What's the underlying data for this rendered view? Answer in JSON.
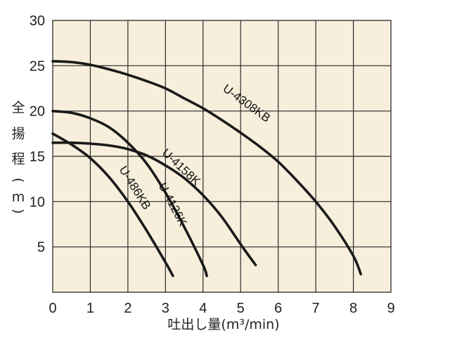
{
  "chart_data": {
    "type": "line",
    "title": "",
    "xlabel": "吐出し量(m³/min)",
    "ylabel_chars": [
      "全",
      "揚",
      "程",
      "(",
      "m",
      ")"
    ],
    "xlim": [
      0,
      9
    ],
    "ylim": [
      0,
      30
    ],
    "x_ticks": [
      "0",
      "1",
      "2",
      "3",
      "4",
      "5",
      "6",
      "7",
      "8",
      "9"
    ],
    "y_ticks": [
      "5",
      "10",
      "15",
      "20",
      "25",
      "30"
    ],
    "grid": true,
    "legend": "inline-labels",
    "colors": {
      "plot_bg": "#f7efdc",
      "grid": "#2a2a2a",
      "curve": "#1a1a1a"
    },
    "series": [
      {
        "name": "U-4308KB",
        "x": [
          0,
          0.5,
          1.0,
          1.5,
          2.0,
          2.5,
          3.0,
          3.5,
          4.0,
          4.5,
          5.0,
          5.5,
          6.0,
          6.5,
          7.0,
          7.5,
          8.0,
          8.2
        ],
        "y": [
          25.5,
          25.4,
          25.1,
          24.6,
          24.0,
          23.3,
          22.5,
          21.4,
          20.3,
          19.0,
          17.6,
          16.1,
          14.4,
          12.3,
          10.0,
          7.3,
          4.0,
          2.0
        ]
      },
      {
        "name": "U-4158K",
        "x": [
          0,
          0.5,
          1.0,
          1.5,
          2.0,
          2.5,
          3.0,
          3.5,
          4.0,
          4.5,
          5.0,
          5.4
        ],
        "y": [
          16.5,
          16.5,
          16.4,
          16.2,
          15.8,
          15.1,
          14.0,
          12.6,
          10.7,
          8.3,
          5.3,
          3.0
        ]
      },
      {
        "name": "U-4126K",
        "x": [
          0,
          0.5,
          1.0,
          1.5,
          2.0,
          2.5,
          3.0,
          3.5,
          4.0,
          4.1
        ],
        "y": [
          20.0,
          19.8,
          19.2,
          18.2,
          16.5,
          14.2,
          11.0,
          7.2,
          3.0,
          1.8
        ]
      },
      {
        "name": "U-486KB",
        "x": [
          0,
          0.5,
          1.0,
          1.5,
          2.0,
          2.5,
          3.0,
          3.2
        ],
        "y": [
          17.5,
          16.3,
          14.8,
          12.7,
          10.0,
          6.8,
          3.3,
          1.8
        ]
      }
    ]
  }
}
